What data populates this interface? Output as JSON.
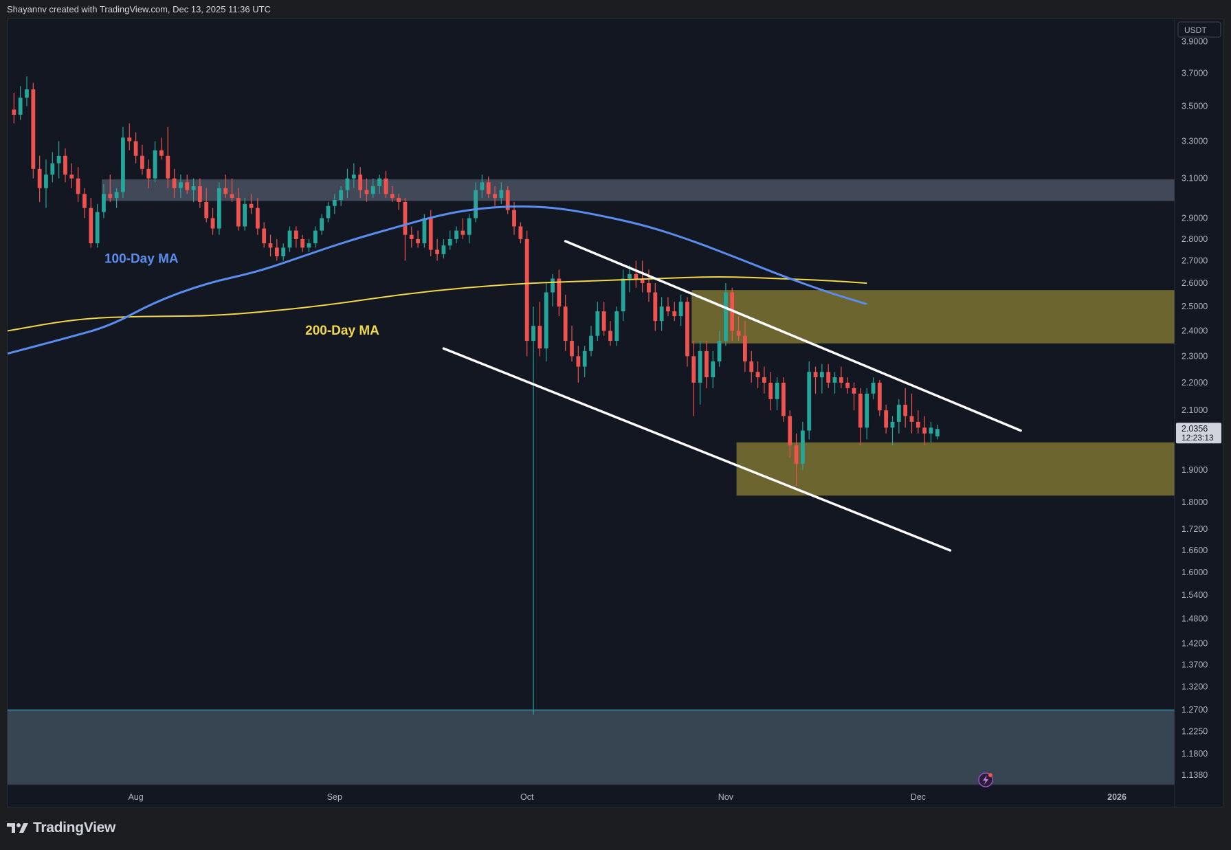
{
  "header": {
    "attribution": "Shayannv created with TradingView.com, Dec 13, 2025 11:36 UTC"
  },
  "footer": {
    "brand": "TradingView",
    "logo_icon": "tradingview-logo-icon"
  },
  "price_axis": {
    "currency": "USDT",
    "current_price": "2.0356",
    "countdown": "12:23:13"
  },
  "colors": {
    "background": "#131722",
    "up": "#26a69a",
    "down": "#ef5350",
    "ma100": "#5b8def",
    "ma200": "#f2d84a",
    "resistance_zone": "#4a5160",
    "yellow_zone": "#7d7331",
    "support_zone": "#3c4a58",
    "channel": "#ffffff"
  },
  "chart_data": {
    "type": "candlestick",
    "scale": "log",
    "ylim": [
      1.12,
      4.05
    ],
    "y_ticks": [
      "3.9000",
      "3.7000",
      "3.5000",
      "3.3000",
      "3.1000",
      "2.9000",
      "2.8000",
      "2.7000",
      "2.6000",
      "2.5000",
      "2.4000",
      "2.3000",
      "2.2000",
      "2.1000",
      "1.9000",
      "1.8000",
      "1.7200",
      "1.6600",
      "1.6000",
      "1.5400",
      "1.4800",
      "1.4200",
      "1.3700",
      "1.3200",
      "1.2700",
      "1.2250",
      "1.1800",
      "1.1380"
    ],
    "x_labels": [
      {
        "label": "Aug",
        "date": "2025-08-01"
      },
      {
        "label": "Sep",
        "date": "2025-09-01"
      },
      {
        "label": "Oct",
        "date": "2025-10-01"
      },
      {
        "label": "Nov",
        "date": "2025-11-01"
      },
      {
        "label": "Dec",
        "date": "2025-12-01"
      },
      {
        "label": "2026",
        "date": "2026-01-01"
      }
    ],
    "x_range": [
      "2025-07-12",
      "2026-01-10"
    ],
    "candles_start": "2025-07-13",
    "candles": [
      [
        3.48,
        3.58,
        3.4,
        3.45
      ],
      [
        3.45,
        3.62,
        3.42,
        3.55
      ],
      [
        3.55,
        3.68,
        3.5,
        3.6
      ],
      [
        3.6,
        3.64,
        3.1,
        3.15
      ],
      [
        3.15,
        3.22,
        2.98,
        3.05
      ],
      [
        3.05,
        3.2,
        2.95,
        3.12
      ],
      [
        3.12,
        3.24,
        3.08,
        3.18
      ],
      [
        3.18,
        3.3,
        3.1,
        3.22
      ],
      [
        3.22,
        3.26,
        3.08,
        3.12
      ],
      [
        3.12,
        3.18,
        3.05,
        3.1
      ],
      [
        3.1,
        3.16,
        2.98,
        3.02
      ],
      [
        3.02,
        3.05,
        2.9,
        2.95
      ],
      [
        2.95,
        3.0,
        2.76,
        2.78
      ],
      [
        2.78,
        2.97,
        2.76,
        2.93
      ],
      [
        2.93,
        3.07,
        2.9,
        3.02
      ],
      [
        3.02,
        3.12,
        2.98,
        3.0
      ],
      [
        3.0,
        3.05,
        2.95,
        3.03
      ],
      [
        3.03,
        3.38,
        3.0,
        3.32
      ],
      [
        3.32,
        3.4,
        3.25,
        3.3
      ],
      [
        3.3,
        3.35,
        3.18,
        3.22
      ],
      [
        3.22,
        3.28,
        3.12,
        3.15
      ],
      [
        3.15,
        3.2,
        3.05,
        3.1
      ],
      [
        3.1,
        3.3,
        3.08,
        3.25
      ],
      [
        3.25,
        3.32,
        3.2,
        3.22
      ],
      [
        3.22,
        3.38,
        3.05,
        3.1
      ],
      [
        3.1,
        3.15,
        3.0,
        3.05
      ],
      [
        3.05,
        3.12,
        3.0,
        3.08
      ],
      [
        3.08,
        3.12,
        3.02,
        3.04
      ],
      [
        3.04,
        3.1,
        2.98,
        3.06
      ],
      [
        3.06,
        3.1,
        2.95,
        2.98
      ],
      [
        2.98,
        3.05,
        2.88,
        2.9
      ],
      [
        2.9,
        2.95,
        2.82,
        2.85
      ],
      [
        2.85,
        3.08,
        2.82,
        3.05
      ],
      [
        3.05,
        3.12,
        3.0,
        3.02
      ],
      [
        3.02,
        3.1,
        2.98,
        3.0
      ],
      [
        3.0,
        3.05,
        2.84,
        2.86
      ],
      [
        2.86,
        3.0,
        2.84,
        2.97
      ],
      [
        2.97,
        3.02,
        2.92,
        2.95
      ],
      [
        2.95,
        3.0,
        2.82,
        2.85
      ],
      [
        2.85,
        2.88,
        2.76,
        2.78
      ],
      [
        2.78,
        2.82,
        2.72,
        2.76
      ],
      [
        2.76,
        2.8,
        2.7,
        2.72
      ],
      [
        2.72,
        2.78,
        2.7,
        2.76
      ],
      [
        2.76,
        2.86,
        2.74,
        2.84
      ],
      [
        2.84,
        2.86,
        2.76,
        2.8
      ],
      [
        2.8,
        2.82,
        2.74,
        2.76
      ],
      [
        2.76,
        2.8,
        2.74,
        2.78
      ],
      [
        2.78,
        2.86,
        2.76,
        2.84
      ],
      [
        2.84,
        2.92,
        2.82,
        2.9
      ],
      [
        2.9,
        2.98,
        2.88,
        2.96
      ],
      [
        2.96,
        3.02,
        2.92,
        2.99
      ],
      [
        2.99,
        3.06,
        2.96,
        3.04
      ],
      [
        3.04,
        3.15,
        3.0,
        3.1
      ],
      [
        3.1,
        3.18,
        3.05,
        3.12
      ],
      [
        3.12,
        3.16,
        3.0,
        3.04
      ],
      [
        3.04,
        3.1,
        2.98,
        3.02
      ],
      [
        3.02,
        3.1,
        3.0,
        3.06
      ],
      [
        3.06,
        3.12,
        3.02,
        3.1
      ],
      [
        3.1,
        3.14,
        3.0,
        3.02
      ],
      [
        3.02,
        3.06,
        2.98,
        3.0
      ],
      [
        3.0,
        3.02,
        2.94,
        2.98
      ],
      [
        2.98,
        3.0,
        2.7,
        2.82
      ],
      [
        2.82,
        2.86,
        2.76,
        2.8
      ],
      [
        2.8,
        2.84,
        2.76,
        2.78
      ],
      [
        2.78,
        2.92,
        2.76,
        2.9
      ],
      [
        2.9,
        2.94,
        2.72,
        2.75
      ],
      [
        2.75,
        2.8,
        2.7,
        2.73
      ],
      [
        2.73,
        2.8,
        2.71,
        2.77
      ],
      [
        2.77,
        2.84,
        2.75,
        2.8
      ],
      [
        2.8,
        2.86,
        2.78,
        2.84
      ],
      [
        2.84,
        2.9,
        2.8,
        2.82
      ],
      [
        2.82,
        2.92,
        2.78,
        2.9
      ],
      [
        2.9,
        3.08,
        2.88,
        3.04
      ],
      [
        3.04,
        3.12,
        3.0,
        3.08
      ],
      [
        3.08,
        3.11,
        3.0,
        3.02
      ],
      [
        3.02,
        3.06,
        2.96,
        3.0
      ],
      [
        3.0,
        3.08,
        2.97,
        3.04
      ],
      [
        3.04,
        3.06,
        2.92,
        2.94
      ],
      [
        2.94,
        2.98,
        2.82,
        2.86
      ],
      [
        2.86,
        2.88,
        2.78,
        2.8
      ],
      [
        2.8,
        2.84,
        2.3,
        2.36
      ],
      [
        2.36,
        2.5,
        1.26,
        2.42
      ],
      [
        2.42,
        2.52,
        2.3,
        2.33
      ],
      [
        2.33,
        2.6,
        2.28,
        2.56
      ],
      [
        2.56,
        2.64,
        2.5,
        2.62
      ],
      [
        2.62,
        2.66,
        2.46,
        2.5
      ],
      [
        2.5,
        2.55,
        2.32,
        2.36
      ],
      [
        2.36,
        2.42,
        2.28,
        2.3
      ],
      [
        2.3,
        2.34,
        2.2,
        2.26
      ],
      [
        2.26,
        2.34,
        2.22,
        2.32
      ],
      [
        2.32,
        2.42,
        2.3,
        2.38
      ],
      [
        2.38,
        2.52,
        2.36,
        2.48
      ],
      [
        2.48,
        2.52,
        2.38,
        2.4
      ],
      [
        2.4,
        2.44,
        2.34,
        2.36
      ],
      [
        2.36,
        2.5,
        2.34,
        2.48
      ],
      [
        2.48,
        2.66,
        2.44,
        2.62
      ],
      [
        2.62,
        2.68,
        2.56,
        2.64
      ],
      [
        2.64,
        2.7,
        2.58,
        2.62
      ],
      [
        2.62,
        2.7,
        2.56,
        2.6
      ],
      [
        2.6,
        2.66,
        2.52,
        2.56
      ],
      [
        2.56,
        2.6,
        2.4,
        2.44
      ],
      [
        2.44,
        2.54,
        2.4,
        2.5
      ],
      [
        2.5,
        2.54,
        2.46,
        2.48
      ],
      [
        2.48,
        2.52,
        2.44,
        2.46
      ],
      [
        2.46,
        2.55,
        2.42,
        2.52
      ],
      [
        2.52,
        2.54,
        2.26,
        2.3
      ],
      [
        2.3,
        2.36,
        2.08,
        2.2
      ],
      [
        2.2,
        2.36,
        2.12,
        2.32
      ],
      [
        2.32,
        2.36,
        2.18,
        2.22
      ],
      [
        2.22,
        2.32,
        2.18,
        2.28
      ],
      [
        2.28,
        2.4,
        2.26,
        2.36
      ],
      [
        2.36,
        2.6,
        2.34,
        2.56
      ],
      [
        2.56,
        2.58,
        2.36,
        2.4
      ],
      [
        2.4,
        2.46,
        2.36,
        2.38
      ],
      [
        2.38,
        2.44,
        2.24,
        2.28
      ],
      [
        2.28,
        2.32,
        2.2,
        2.24
      ],
      [
        2.24,
        2.28,
        2.18,
        2.22
      ],
      [
        2.22,
        2.26,
        2.16,
        2.2
      ],
      [
        2.2,
        2.24,
        2.1,
        2.14
      ],
      [
        2.14,
        2.22,
        2.1,
        2.2
      ],
      [
        2.2,
        2.22,
        2.06,
        2.08
      ],
      [
        2.08,
        2.1,
        1.94,
        1.98
      ],
      [
        1.98,
        2.02,
        1.85,
        1.92
      ],
      [
        1.92,
        2.06,
        1.9,
        2.03
      ],
      [
        2.03,
        2.28,
        2.0,
        2.24
      ],
      [
        2.24,
        2.26,
        2.16,
        2.22
      ],
      [
        2.22,
        2.27,
        2.16,
        2.24
      ],
      [
        2.24,
        2.27,
        2.18,
        2.2
      ],
      [
        2.2,
        2.24,
        2.16,
        2.22
      ],
      [
        2.22,
        2.26,
        2.18,
        2.2
      ],
      [
        2.2,
        2.22,
        2.16,
        2.18
      ],
      [
        2.18,
        2.2,
        2.1,
        2.16
      ],
      [
        2.16,
        2.18,
        1.98,
        2.04
      ],
      [
        2.04,
        2.18,
        2.0,
        2.16
      ],
      [
        2.16,
        2.22,
        2.14,
        2.2
      ],
      [
        2.2,
        2.21,
        2.08,
        2.1
      ],
      [
        2.1,
        2.12,
        2.02,
        2.04
      ],
      [
        2.04,
        2.08,
        1.98,
        2.06
      ],
      [
        2.06,
        2.14,
        2.02,
        2.12
      ],
      [
        2.12,
        2.18,
        2.04,
        2.08
      ],
      [
        2.08,
        2.16,
        2.02,
        2.06
      ],
      [
        2.06,
        2.1,
        2.02,
        2.04
      ],
      [
        2.04,
        2.08,
        1.98,
        2.02
      ],
      [
        2.02,
        2.06,
        1.99,
        2.04
      ],
      [
        2.01,
        2.05,
        2.0,
        2.0356
      ]
    ],
    "ma100": [
      [
        0,
        2.31
      ],
      [
        8,
        2.37
      ],
      [
        15,
        2.42
      ],
      [
        22,
        2.52
      ],
      [
        30,
        2.6
      ],
      [
        38,
        2.65
      ],
      [
        45,
        2.72
      ],
      [
        52,
        2.79
      ],
      [
        60,
        2.86
      ],
      [
        67,
        2.92
      ],
      [
        73,
        2.95
      ],
      [
        79,
        2.96
      ],
      [
        85,
        2.95
      ],
      [
        92,
        2.91
      ],
      [
        99,
        2.86
      ],
      [
        106,
        2.79
      ],
      [
        113,
        2.71
      ],
      [
        120,
        2.63
      ],
      [
        127,
        2.56
      ],
      [
        133,
        2.51
      ]
    ],
    "ma200": [
      [
        0,
        2.4
      ],
      [
        10,
        2.45
      ],
      [
        20,
        2.46
      ],
      [
        30,
        2.46
      ],
      [
        40,
        2.48
      ],
      [
        50,
        2.51
      ],
      [
        60,
        2.55
      ],
      [
        70,
        2.58
      ],
      [
        80,
        2.6
      ],
      [
        90,
        2.61
      ],
      [
        100,
        2.62
      ],
      [
        110,
        2.63
      ],
      [
        120,
        2.62
      ],
      [
        128,
        2.61
      ],
      [
        133,
        2.6
      ]
    ],
    "zones": [
      {
        "name": "resistance-zone",
        "from": 14,
        "to": "end",
        "low": 2.985,
        "high": 3.095
      },
      {
        "name": "upper-yellow-zone",
        "from": 106,
        "to": "end",
        "low": 2.35,
        "high": 2.57
      },
      {
        "name": "lower-yellow-zone",
        "from": 113,
        "to": "end",
        "low": 1.82,
        "high": 1.99
      },
      {
        "name": "lower-support-zone",
        "from": "start",
        "to": "end",
        "low": 1.12,
        "high": 1.27
      }
    ],
    "channel_lines": [
      {
        "name": "channel-upper-line",
        "from": [
          86,
          2.79
        ],
        "to": [
          157,
          2.03
        ]
      },
      {
        "name": "channel-lower-line",
        "from": [
          67,
          2.33
        ],
        "to": [
          146,
          1.66
        ]
      }
    ],
    "annotations": [
      {
        "text": "100-Day MA",
        "series": "ma100"
      },
      {
        "text": "200-Day MA",
        "series": "ma200"
      }
    ]
  }
}
